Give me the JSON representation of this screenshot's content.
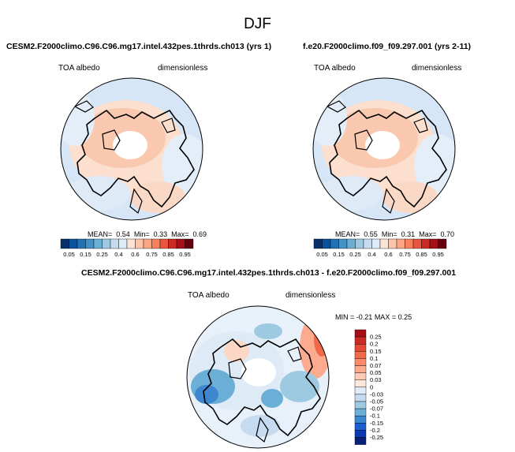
{
  "figure": {
    "season": "DJF",
    "variable": "TOA albedo",
    "units": "dimensionless"
  },
  "panels": {
    "model": {
      "title": "CESM2.F2000climo.C96.C96.mg17.intel.432pes.1thrds.ch013 (yrs 1)",
      "stats": {
        "mean_label": "MEAN=",
        "mean": "0.54",
        "min_label": "Min=",
        "min": "0.33",
        "max_label": "Max=",
        "max": "0.69"
      }
    },
    "reference": {
      "title": "f.e20.F2000climo.f09_f09.297.001 (yrs 2-11)",
      "stats": {
        "mean_label": "MEAN=",
        "mean": "0.55",
        "min_label": "Min=",
        "min": "0.31",
        "max_label": "Max=",
        "max": "0.70"
      }
    },
    "difference": {
      "title": "CESM2.F2000climo.C96.C96.mg17.intel.432pes.1thrds.ch013 - f.e20.F2000climo.f09_f09.297.001",
      "stats": {
        "min_label": "MIN =",
        "min": "-0.21",
        "max_label": "MAX =",
        "max": "0.25"
      }
    }
  },
  "colorbars": {
    "absolute": {
      "labels": [
        "0.05",
        "0.15",
        "0.25",
        "0.4",
        "0.6",
        "0.75",
        "0.85",
        "0.95"
      ],
      "colors": [
        "#08306b",
        "#08519c",
        "#2171b5",
        "#4292c6",
        "#6baed6",
        "#9ecae1",
        "#c6dbef",
        "#deebf7",
        "#fbe3d6",
        "#fcc5ab",
        "#fca582",
        "#f9805c",
        "#e8563d",
        "#cb2a25",
        "#a50f15",
        "#67000d"
      ]
    },
    "difference": {
      "labels": [
        "0.25",
        "0.2",
        "0.15",
        "0.1",
        "0.07",
        "0.05",
        "0.03",
        "0",
        "-0.03",
        "-0.05",
        "-0.07",
        "-0.1",
        "-0.15",
        "-0.2",
        "-0.25"
      ],
      "colors": [
        "#a50f15",
        "#cb2a25",
        "#e34a33",
        "#f2694a",
        "#fb8a6a",
        "#fcab8f",
        "#fdcab5",
        "#fee7dc",
        "#e2ecf9",
        "#c6dbef",
        "#9ecae1",
        "#6baed6",
        "#3d87d0",
        "#1c5fcf",
        "#0c3ab5",
        "#08207a"
      ]
    }
  },
  "chart_data": [
    {
      "type": "heatmap",
      "projection": "polar stereographic (Arctic)",
      "title": "CESM2.F2000climo.C96.C96.mg17.intel.432pes.1thrds.ch013 (yrs 1)",
      "variable": "TOA albedo",
      "units": "dimensionless",
      "mean": 0.54,
      "min": 0.33,
      "max": 0.69,
      "levels": [
        0.05,
        0.1,
        0.15,
        0.2,
        0.25,
        0.3,
        0.4,
        0.5,
        0.6,
        0.7,
        0.75,
        0.8,
        0.85,
        0.9,
        0.95
      ]
    },
    {
      "type": "heatmap",
      "projection": "polar stereographic (Arctic)",
      "title": "f.e20.F2000climo.f09_f09.297.001 (yrs 2-11)",
      "variable": "TOA albedo",
      "units": "dimensionless",
      "mean": 0.55,
      "min": 0.31,
      "max": 0.7,
      "levels": [
        0.05,
        0.1,
        0.15,
        0.2,
        0.25,
        0.3,
        0.4,
        0.5,
        0.6,
        0.7,
        0.75,
        0.8,
        0.85,
        0.9,
        0.95
      ]
    },
    {
      "type": "heatmap",
      "projection": "polar stereographic (Arctic)",
      "title": "CESM2.F2000climo.C96.C96.mg17.intel.432pes.1thrds.ch013 - f.e20.F2000climo.f09_f09.297.001",
      "variable": "TOA albedo",
      "units": "dimensionless",
      "min": -0.21,
      "max": 0.25,
      "levels": [
        -0.25,
        -0.2,
        -0.15,
        -0.1,
        -0.07,
        -0.05,
        -0.03,
        0,
        0.03,
        0.05,
        0.07,
        0.1,
        0.15,
        0.2,
        0.25
      ]
    }
  ]
}
